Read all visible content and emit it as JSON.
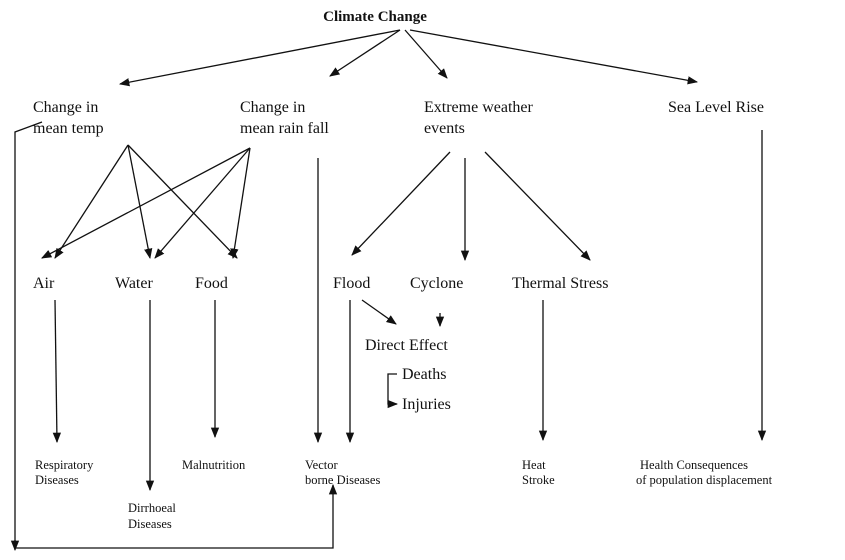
{
  "title": "Climate Change",
  "nodes": [
    {
      "lines": [
        "Change in",
        "mean temp"
      ]
    },
    {
      "lines": [
        "Change in",
        "mean rain fall"
      ]
    },
    {
      "lines": [
        "Extreme weather",
        "events"
      ]
    },
    {
      "lines": [
        "Sea Level Rise"
      ]
    },
    {
      "lines": [
        "Air"
      ]
    },
    {
      "lines": [
        "Water"
      ]
    },
    {
      "lines": [
        "Food"
      ]
    },
    {
      "lines": [
        "Flood"
      ]
    },
    {
      "lines": [
        "Cyclone"
      ]
    },
    {
      "lines": [
        "Thermal Stress"
      ]
    },
    {
      "lines": [
        "Direct Effect"
      ]
    },
    {
      "lines": [
        "Deaths"
      ]
    },
    {
      "lines": [
        "Injuries"
      ]
    },
    {
      "lines": [
        "Respiratory",
        "Diseases"
      ]
    },
    {
      "lines": [
        "Dirrhoeal",
        "Diseases"
      ]
    },
    {
      "lines": [
        "Malnutrition"
      ]
    },
    {
      "lines": [
        "Vector",
        "borne Diseases"
      ]
    },
    {
      "lines": [
        "Heat",
        "Stroke"
      ]
    },
    {
      "lines": [
        "Health Consequences",
        "of population displacement"
      ]
    }
  ]
}
